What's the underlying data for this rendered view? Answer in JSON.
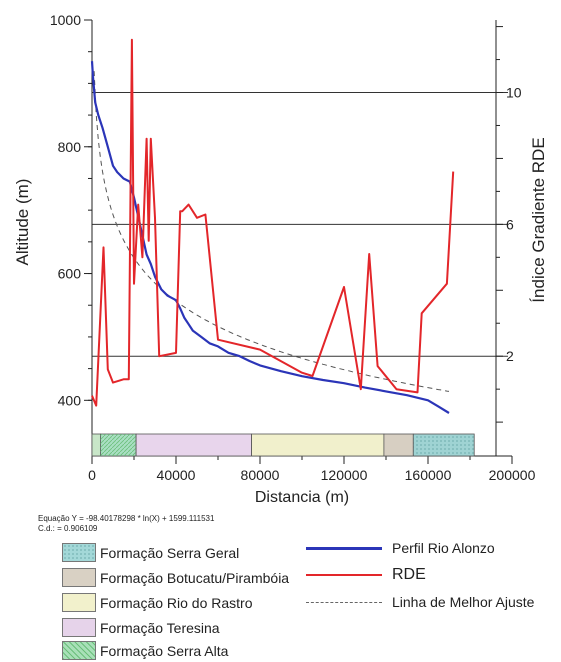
{
  "chart_data": {
    "type": "line",
    "xlabel": "Distancia (m)",
    "ylabel_left": "Altitude (m)",
    "ylabel_right": "Índice Gradiente RDE",
    "xlim": [
      0,
      200000
    ],
    "ylim_left": [
      350,
      1000
    ],
    "ylim_right": [
      -0.3,
      12.2
    ],
    "x_ticks": [
      0,
      40000,
      80000,
      120000,
      160000,
      200000
    ],
    "x_tick_labels": [
      "0",
      "40000",
      "80000",
      "120000",
      "160000",
      "200000"
    ],
    "y_left_ticks": [
      400,
      600,
      800,
      1000
    ],
    "y_left_tick_labels": [
      "400",
      "600",
      "800",
      "1000"
    ],
    "y_right_ticks": [
      2,
      6,
      10
    ],
    "y_right_tick_labels": [
      "2",
      "6",
      "10"
    ],
    "reference_lines_right": [
      2,
      6,
      10
    ],
    "series": [
      {
        "name": "Perfil Rio Alonzo",
        "axis": "left",
        "color": "#2b35b8",
        "x": [
          0,
          500,
          1500,
          3000,
          5000,
          7500,
          10000,
          12000,
          15000,
          18000,
          20000,
          22000,
          24000,
          26000,
          28000,
          30000,
          33000,
          36000,
          40000,
          42000,
          44000,
          46000,
          48000,
          52000,
          56000,
          60000,
          65000,
          70000,
          75000,
          80000,
          90000,
          100000,
          110000,
          120000,
          130000,
          140000,
          150000,
          160000,
          165000,
          170000
        ],
        "y": [
          935,
          910,
          870,
          850,
          830,
          800,
          770,
          760,
          750,
          745,
          720,
          690,
          660,
          630,
          615,
          595,
          575,
          565,
          558,
          545,
          530,
          520,
          510,
          500,
          490,
          485,
          475,
          470,
          462,
          455,
          446,
          438,
          432,
          427,
          420,
          414,
          408,
          400,
          390,
          380
        ]
      },
      {
        "name": "RDE",
        "axis": "right",
        "color": "#e3262a",
        "x": [
          0,
          2000,
          5500,
          7500,
          10000,
          15000,
          17500,
          19000,
          20000,
          22000,
          24000,
          26000,
          27000,
          28000,
          30000,
          32000,
          40000,
          42000,
          43000,
          46000,
          50000,
          54000,
          60000,
          80000,
          100000,
          105000,
          120000,
          128000,
          132000,
          136000,
          145000,
          155000,
          157000,
          169000,
          172000
        ],
        "y": [
          0.8,
          0.5,
          5.3,
          1.6,
          1.2,
          1.3,
          1.3,
          11.6,
          4.2,
          6.6,
          5.0,
          8.6,
          5.5,
          8.6,
          6.2,
          2.0,
          2.1,
          6.4,
          6.4,
          6.6,
          6.2,
          6.3,
          2.5,
          2.2,
          1.5,
          1.4,
          4.1,
          1.0,
          5.1,
          1.7,
          1.0,
          0.9,
          3.3,
          4.2,
          7.6
        ]
      },
      {
        "name": "Linha de Melhor Ajuste",
        "axis": "left",
        "color": "#555555",
        "dashed": true,
        "equation": "y = -98.40178298 * ln(x) + 1599.111531",
        "x_range": [
          1000,
          170000
        ]
      }
    ],
    "formation_bar": [
      {
        "name": "Formação Serra Alta",
        "start": 0,
        "end": 4000,
        "color": "#c8e6c8"
      },
      {
        "name": "Formação Serra Geral",
        "start": 4000,
        "end": 21000,
        "color": "#a9dfc3"
      },
      {
        "name": "Formação Teresina",
        "start": 21000,
        "end": 76000,
        "color": "#e8d5ec"
      },
      {
        "name": "Formação Rio do Rastro",
        "start": 76000,
        "end": 139000,
        "color": "#f1f0cc"
      },
      {
        "name": "Formação Botucatu/Pirambóia",
        "start": 139000,
        "end": 153000,
        "color": "#d7cfc2"
      },
      {
        "name": "Formação Serra Geral",
        "start": 153000,
        "end": 182000,
        "color": "#9fd3d3"
      }
    ]
  },
  "equation_text": "Equação Y = -98.40178298 * ln(X) + 1599.111531",
  "cd_text": "C.d.: = 0.906109",
  "legend": {
    "formations": [
      {
        "label": "Formação Serra Geral",
        "color": "#a3d8d8"
      },
      {
        "label": "Formação Botucatu/Pirambóia",
        "color": "#d9d1c4"
      },
      {
        "label": "Formação Rio do Rastro",
        "color": "#f2f1cc"
      },
      {
        "label": "Formação Teresina",
        "color": "#e6d3ea"
      },
      {
        "label": "Formação Serra Alta",
        "color": "#a8e0b8"
      }
    ],
    "lines": [
      {
        "label": "Perfil Rio Alonzo",
        "color": "#2b35b8",
        "style": "solid"
      },
      {
        "label": "RDE",
        "color": "#e3262a",
        "style": "solid"
      },
      {
        "label": "Linha de Melhor Ajuste",
        "color": "#666666",
        "style": "dashed"
      }
    ]
  }
}
